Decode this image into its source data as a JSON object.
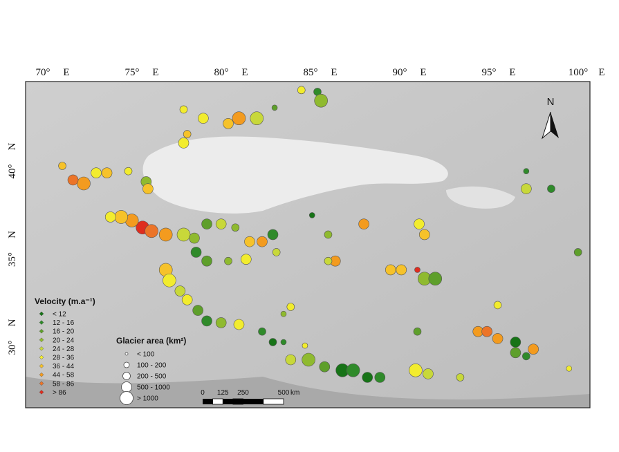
{
  "map": {
    "lon_ticks": [
      {
        "value": 70,
        "label": "70°"
      },
      {
        "value": 75,
        "label": "75°"
      },
      {
        "value": 80,
        "label": "80°"
      },
      {
        "value": 85,
        "label": "85°"
      },
      {
        "value": 90,
        "label": "90°"
      },
      {
        "value": 95,
        "label": "95°"
      },
      {
        "value": 100,
        "label": "100°"
      }
    ],
    "lon_suffix": "E",
    "lat_ticks": [
      {
        "value": 40,
        "label": "40°"
      },
      {
        "value": 35,
        "label": "35°"
      },
      {
        "value": 30,
        "label": "30°"
      }
    ],
    "lat_suffix": "N",
    "north_label": "N",
    "velocity_legend": {
      "title": "Velocity  (m.a⁻¹)",
      "classes": [
        {
          "label": "< 12",
          "color": "#177317"
        },
        {
          "label": "12 - 16",
          "color": "#2f8a2a"
        },
        {
          "label": "16 - 20",
          "color": "#5e9f2b"
        },
        {
          "label": "20 - 24",
          "color": "#8fba2f"
        },
        {
          "label": "24 - 28",
          "color": "#c8d83a"
        },
        {
          "label": "28 - 36",
          "color": "#f2ec2e"
        },
        {
          "label": "36 - 44",
          "color": "#f6c22a"
        },
        {
          "label": "44 - 58",
          "color": "#f39b1f"
        },
        {
          "label": "58 - 86",
          "color": "#ec7428"
        },
        {
          "label": "> 86",
          "color": "#df2d1f"
        }
      ]
    },
    "area_legend": {
      "title": "Glacier area  (km²)",
      "classes": [
        "< 100",
        "100 - 200",
        "200 - 500",
        "500 - 1000",
        "> 1000"
      ]
    },
    "scale_bar": {
      "ticks": [
        0,
        125,
        250,
        500
      ],
      "unit": "km"
    },
    "glaciers": [
      {
        "lon": 75.2,
        "lat": 36.5,
        "velocity_class": 9,
        "area_class": 4
      },
      {
        "lon": 74.6,
        "lat": 36.9,
        "velocity_class": 7,
        "area_class": 4
      },
      {
        "lon": 75.7,
        "lat": 36.3,
        "velocity_class": 8,
        "area_class": 4
      },
      {
        "lon": 74.0,
        "lat": 37.1,
        "velocity_class": 6,
        "area_class": 4
      },
      {
        "lon": 76.5,
        "lat": 36.1,
        "velocity_class": 7,
        "area_class": 4
      },
      {
        "lon": 73.4,
        "lat": 37.1,
        "velocity_class": 5,
        "area_class": 3
      },
      {
        "lon": 77.5,
        "lat": 36.1,
        "velocity_class": 4,
        "area_class": 4
      },
      {
        "lon": 78.1,
        "lat": 35.9,
        "velocity_class": 3,
        "area_class": 3
      },
      {
        "lon": 78.8,
        "lat": 36.7,
        "velocity_class": 2,
        "area_class": 3
      },
      {
        "lon": 79.6,
        "lat": 36.7,
        "velocity_class": 4,
        "area_class": 3
      },
      {
        "lon": 80.4,
        "lat": 36.5,
        "velocity_class": 3,
        "area_class": 2
      },
      {
        "lon": 81.2,
        "lat": 35.7,
        "velocity_class": 6,
        "area_class": 3
      },
      {
        "lon": 81.9,
        "lat": 35.7,
        "velocity_class": 7,
        "area_class": 3
      },
      {
        "lon": 82.5,
        "lat": 36.1,
        "velocity_class": 1,
        "area_class": 3
      },
      {
        "lon": 71.9,
        "lat": 39.0,
        "velocity_class": 7,
        "area_class": 4
      },
      {
        "lon": 71.3,
        "lat": 39.2,
        "velocity_class": 8,
        "area_class": 3
      },
      {
        "lon": 72.6,
        "lat": 39.6,
        "velocity_class": 5,
        "area_class": 3
      },
      {
        "lon": 73.2,
        "lat": 39.6,
        "velocity_class": 6,
        "area_class": 3
      },
      {
        "lon": 70.7,
        "lat": 40.0,
        "velocity_class": 6,
        "area_class": 2
      },
      {
        "lon": 74.4,
        "lat": 39.7,
        "velocity_class": 5,
        "area_class": 2
      },
      {
        "lon": 75.4,
        "lat": 39.1,
        "velocity_class": 3,
        "area_class": 3
      },
      {
        "lon": 75.5,
        "lat": 38.7,
        "velocity_class": 6,
        "area_class": 3
      },
      {
        "lon": 80.6,
        "lat": 42.7,
        "velocity_class": 7,
        "area_class": 4
      },
      {
        "lon": 80.0,
        "lat": 42.4,
        "velocity_class": 6,
        "area_class": 3
      },
      {
        "lon": 81.6,
        "lat": 42.7,
        "velocity_class": 4,
        "area_class": 4
      },
      {
        "lon": 78.6,
        "lat": 42.7,
        "velocity_class": 5,
        "area_class": 3
      },
      {
        "lon": 77.5,
        "lat": 41.3,
        "velocity_class": 5,
        "area_class": 3
      },
      {
        "lon": 77.7,
        "lat": 41.8,
        "velocity_class": 6,
        "area_class": 2
      },
      {
        "lon": 85.0,
        "lat": 44.2,
        "velocity_class": 1,
        "area_class": 2
      },
      {
        "lon": 84.1,
        "lat": 44.3,
        "velocity_class": 5,
        "area_class": 2
      },
      {
        "lon": 85.2,
        "lat": 43.7,
        "velocity_class": 3,
        "area_class": 4
      },
      {
        "lon": 82.6,
        "lat": 43.3,
        "velocity_class": 2,
        "area_class": 1
      },
      {
        "lon": 77.5,
        "lat": 43.2,
        "velocity_class": 5,
        "area_class": 2
      },
      {
        "lon": 76.5,
        "lat": 34.1,
        "velocity_class": 6,
        "area_class": 4
      },
      {
        "lon": 76.7,
        "lat": 33.5,
        "velocity_class": 5,
        "area_class": 4
      },
      {
        "lon": 77.3,
        "lat": 32.9,
        "velocity_class": 4,
        "area_class": 3
      },
      {
        "lon": 77.7,
        "lat": 32.4,
        "velocity_class": 5,
        "area_class": 3
      },
      {
        "lon": 78.3,
        "lat": 31.8,
        "velocity_class": 2,
        "area_class": 3
      },
      {
        "lon": 78.8,
        "lat": 31.2,
        "velocity_class": 1,
        "area_class": 3
      },
      {
        "lon": 79.6,
        "lat": 31.1,
        "velocity_class": 3,
        "area_class": 3
      },
      {
        "lon": 80.6,
        "lat": 31.0,
        "velocity_class": 5,
        "area_class": 3
      },
      {
        "lon": 78.8,
        "lat": 34.6,
        "velocity_class": 2,
        "area_class": 3
      },
      {
        "lon": 78.2,
        "lat": 35.1,
        "velocity_class": 1,
        "area_class": 3
      },
      {
        "lon": 80.0,
        "lat": 34.6,
        "velocity_class": 3,
        "area_class": 2
      },
      {
        "lon": 81.0,
        "lat": 34.7,
        "velocity_class": 5,
        "area_class": 3
      },
      {
        "lon": 83.5,
        "lat": 29.0,
        "velocity_class": 4,
        "area_class": 3
      },
      {
        "lon": 84.5,
        "lat": 29.0,
        "velocity_class": 3,
        "area_class": 4
      },
      {
        "lon": 85.4,
        "lat": 28.6,
        "velocity_class": 2,
        "area_class": 3
      },
      {
        "lon": 86.4,
        "lat": 28.4,
        "velocity_class": 0,
        "area_class": 4
      },
      {
        "lon": 87.0,
        "lat": 28.4,
        "velocity_class": 1,
        "area_class": 4
      },
      {
        "lon": 87.8,
        "lat": 28.0,
        "velocity_class": 0,
        "area_class": 3
      },
      {
        "lon": 88.5,
        "lat": 28.0,
        "velocity_class": 1,
        "area_class": 3
      },
      {
        "lon": 90.5,
        "lat": 28.4,
        "velocity_class": 5,
        "area_class": 4
      },
      {
        "lon": 91.2,
        "lat": 28.2,
        "velocity_class": 4,
        "area_class": 3
      },
      {
        "lon": 93.0,
        "lat": 28.0,
        "velocity_class": 4,
        "area_class": 2
      },
      {
        "lon": 94.0,
        "lat": 30.6,
        "velocity_class": 7,
        "area_class": 3
      },
      {
        "lon": 94.5,
        "lat": 30.6,
        "velocity_class": 8,
        "area_class": 3
      },
      {
        "lon": 95.1,
        "lat": 30.2,
        "velocity_class": 7,
        "area_class": 3
      },
      {
        "lon": 96.1,
        "lat": 30.0,
        "velocity_class": 0,
        "area_class": 3
      },
      {
        "lon": 97.1,
        "lat": 29.6,
        "velocity_class": 7,
        "area_class": 3
      },
      {
        "lon": 96.1,
        "lat": 29.4,
        "velocity_class": 2,
        "area_class": 3
      },
      {
        "lon": 96.7,
        "lat": 29.2,
        "velocity_class": 1,
        "area_class": 2
      },
      {
        "lon": 87.6,
        "lat": 36.7,
        "velocity_class": 7,
        "area_class": 3
      },
      {
        "lon": 86.0,
        "lat": 34.6,
        "velocity_class": 7,
        "area_class": 3
      },
      {
        "lon": 85.6,
        "lat": 34.6,
        "velocity_class": 4,
        "area_class": 2
      },
      {
        "lon": 89.1,
        "lat": 34.1,
        "velocity_class": 6,
        "area_class": 3
      },
      {
        "lon": 89.7,
        "lat": 34.1,
        "velocity_class": 6,
        "area_class": 3
      },
      {
        "lon": 91.0,
        "lat": 33.6,
        "velocity_class": 3,
        "area_class": 4
      },
      {
        "lon": 91.6,
        "lat": 33.6,
        "velocity_class": 2,
        "area_class": 4
      },
      {
        "lon": 90.6,
        "lat": 34.1,
        "velocity_class": 9,
        "area_class": 1
      },
      {
        "lon": 91.0,
        "lat": 36.1,
        "velocity_class": 6,
        "area_class": 3
      },
      {
        "lon": 90.7,
        "lat": 36.7,
        "velocity_class": 5,
        "area_class": 3
      },
      {
        "lon": 85.6,
        "lat": 36.1,
        "velocity_class": 3,
        "area_class": 2
      },
      {
        "lon": 84.7,
        "lat": 37.2,
        "velocity_class": 0,
        "area_class": 1
      },
      {
        "lon": 96.7,
        "lat": 38.7,
        "velocity_class": 4,
        "area_class": 3
      },
      {
        "lon": 98.1,
        "lat": 38.7,
        "velocity_class": 1,
        "area_class": 2
      },
      {
        "lon": 99.6,
        "lat": 35.1,
        "velocity_class": 2,
        "area_class": 2
      },
      {
        "lon": 96.7,
        "lat": 39.7,
        "velocity_class": 1,
        "area_class": 1
      },
      {
        "lon": 82.7,
        "lat": 35.1,
        "velocity_class": 4,
        "area_class": 2
      },
      {
        "lon": 83.5,
        "lat": 32.0,
        "velocity_class": 5,
        "area_class": 2
      },
      {
        "lon": 81.9,
        "lat": 30.6,
        "velocity_class": 1,
        "area_class": 2
      },
      {
        "lon": 82.5,
        "lat": 30.0,
        "velocity_class": 0,
        "area_class": 2
      },
      {
        "lon": 83.1,
        "lat": 30.0,
        "velocity_class": 1,
        "area_class": 1
      },
      {
        "lon": 83.1,
        "lat": 31.6,
        "velocity_class": 3,
        "area_class": 1
      },
      {
        "lon": 84.3,
        "lat": 29.8,
        "velocity_class": 5,
        "area_class": 1
      },
      {
        "lon": 95.1,
        "lat": 32.1,
        "velocity_class": 5,
        "area_class": 2
      },
      {
        "lon": 99.1,
        "lat": 28.5,
        "velocity_class": 5,
        "area_class": 1
      },
      {
        "lon": 90.6,
        "lat": 30.6,
        "velocity_class": 2,
        "area_class": 2
      }
    ]
  }
}
